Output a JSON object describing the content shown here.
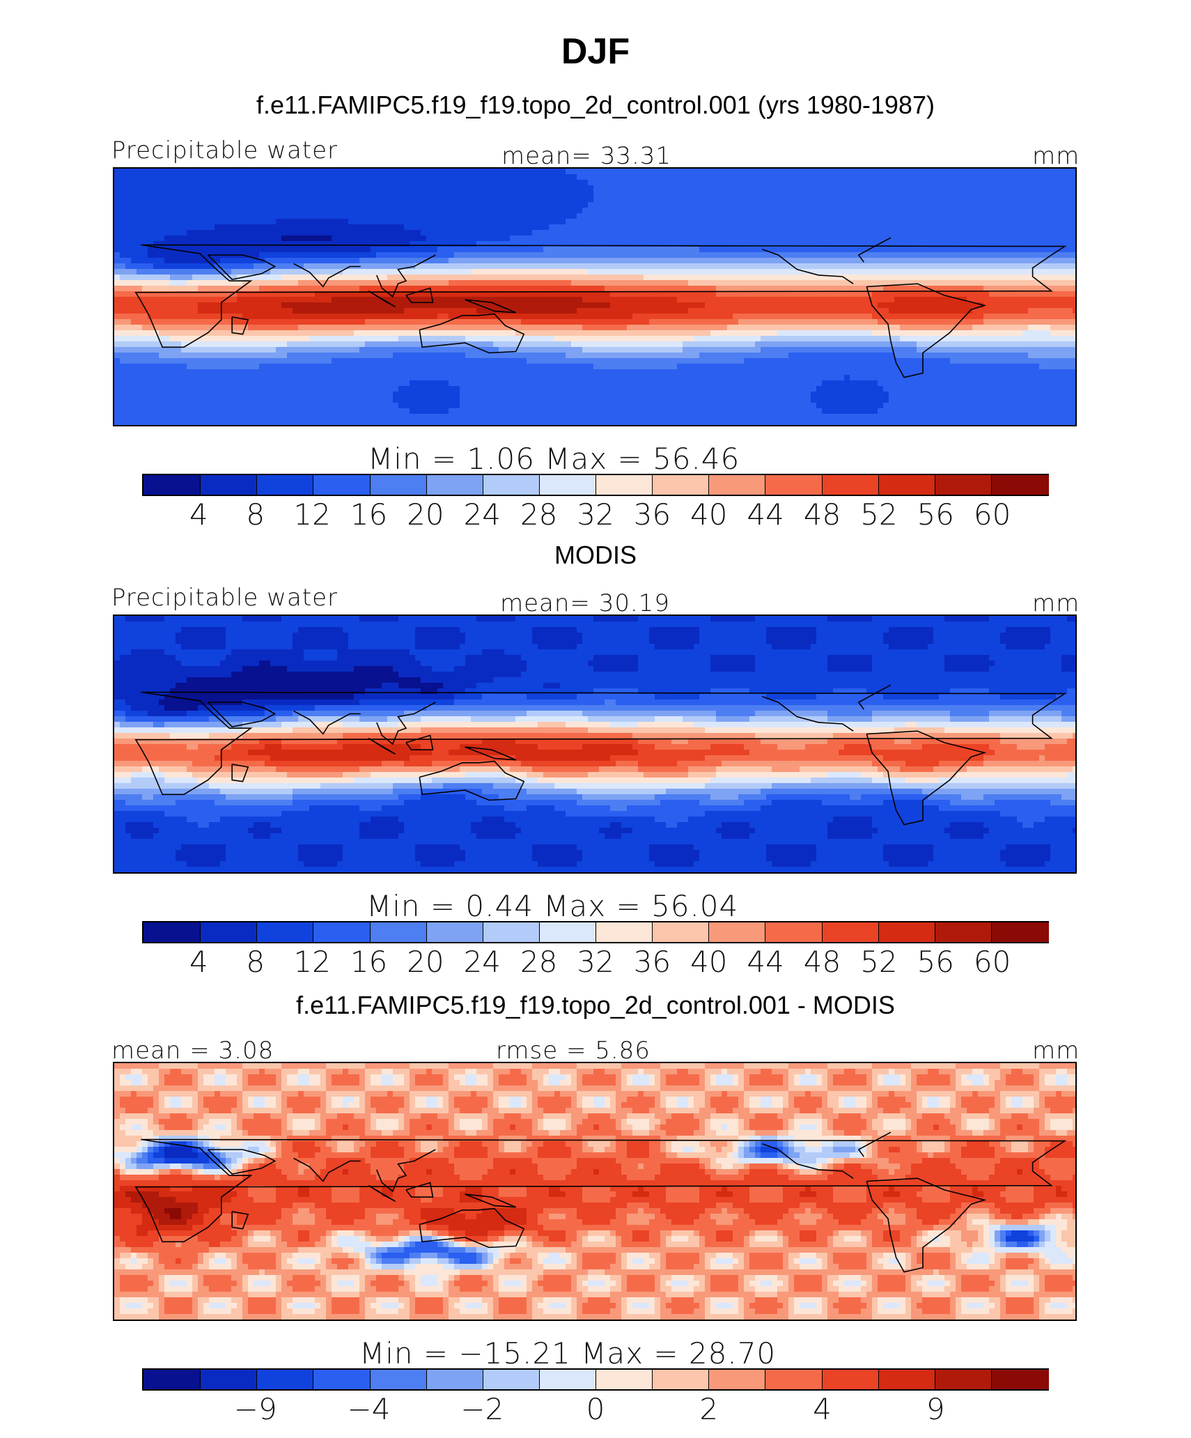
{
  "figure": {
    "title": "DJF",
    "panels": [
      {
        "id": "model",
        "heading": "f.e11.FAMIPC5.f19_f19.topo_2d_control.001 (yrs 1980-1987)",
        "left_label": "Precipitable water",
        "center_label": "mean=   33.31",
        "right_label": "mm",
        "minmax_label": "Min  =    1.06  Max  =   56.46",
        "field": "model"
      },
      {
        "id": "obs",
        "heading": "MODIS",
        "left_label": "Precipitable water",
        "center_label": "mean=   30.19",
        "right_label": "mm",
        "minmax_label": "Min  =    0.44  Max  =   56.04",
        "field": "obs"
      },
      {
        "id": "diff",
        "heading": "f.e11.FAMIPC5.f19_f19.topo_2d_control.001 - MODIS",
        "left_label": "mean  =    3.08",
        "center_label": "rmse  =    5.86",
        "right_label": "mm",
        "minmax_label": "Min  = −15.21  Max  =   28.70",
        "field": "diff"
      }
    ]
  },
  "palette": [
    "#08118f",
    "#0a2bc2",
    "#1042dd",
    "#2a5ff0",
    "#4d7ef2",
    "#7ea3f4",
    "#b2cbf8",
    "#dbe7fb",
    "#fce6d8",
    "#fbc6ab",
    "#f8997a",
    "#f56b4a",
    "#ea4325",
    "#d42b12",
    "#b01a0a",
    "#8c0a05"
  ],
  "colorbars": {
    "abs": {
      "labels": [
        "4",
        "8",
        "12",
        "16",
        "20",
        "24",
        "28",
        "32",
        "36",
        "40",
        "44",
        "48",
        "52",
        "56",
        "60"
      ]
    },
    "diff": {
      "labels": [
        "−9",
        "−4",
        "−2",
        "0",
        "2",
        "4",
        "9"
      ]
    }
  }
}
